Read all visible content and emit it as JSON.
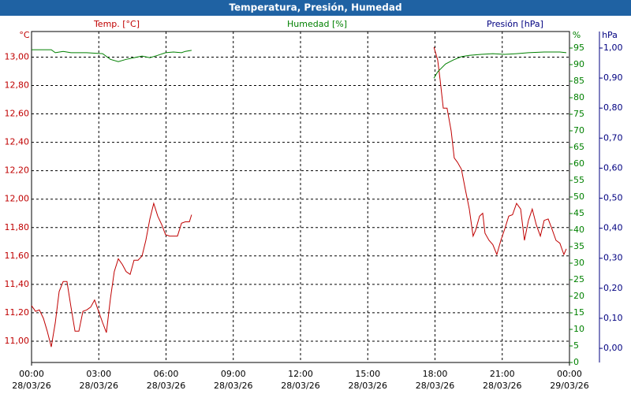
{
  "chart_data": {
    "type": "line",
    "title": "Temperatura, Presión, Humedad",
    "xlim": [
      0,
      24
    ],
    "xticks": [
      {
        "value": 0,
        "label": "00:00"
      },
      {
        "value": 3,
        "label": "03:00"
      },
      {
        "value": 6,
        "label": "06:00"
      },
      {
        "value": 9,
        "label": "09:00"
      },
      {
        "value": 12,
        "label": "12:00"
      },
      {
        "value": 15,
        "label": "15:00"
      },
      {
        "value": 18,
        "label": "18:00"
      },
      {
        "value": 21,
        "label": "21:00"
      },
      {
        "value": 24,
        "label": "00:00"
      }
    ],
    "xtick_dates": [
      "28/03/26",
      "28/03/26",
      "28/03/26",
      "28/03/26",
      "28/03/26",
      "28/03/26",
      "28/03/26",
      "28/03/26",
      "29/03/26"
    ],
    "ylabel": "°C",
    "ylim": [
      10.85,
      13.18
    ],
    "yticks": [
      {
        "value": 11.0,
        "label": "11,00"
      },
      {
        "value": 11.2,
        "label": "11,20"
      },
      {
        "value": 11.4,
        "label": "11,40"
      },
      {
        "value": 11.6,
        "label": "11,60"
      },
      {
        "value": 11.8,
        "label": "11,80"
      },
      {
        "value": 12.0,
        "label": "12,00"
      },
      {
        "value": 12.2,
        "label": "12,20"
      },
      {
        "value": 12.4,
        "label": "12,40"
      },
      {
        "value": 12.6,
        "label": "12,60"
      },
      {
        "value": 12.8,
        "label": "12,80"
      },
      {
        "value": 13.0,
        "label": "13,00"
      }
    ],
    "y2label": "%",
    "y2lim": [
      0,
      100
    ],
    "y2ticks": [
      0,
      5,
      10,
      15,
      20,
      25,
      30,
      35,
      40,
      45,
      50,
      55,
      60,
      65,
      70,
      75,
      80,
      85,
      90,
      95
    ],
    "y3name": "Presión [hPa]",
    "y3label": "hPa",
    "y3color": "#000080",
    "y3lim": [
      -0.047,
      1.055
    ],
    "y3ticks": [
      {
        "value": 0.0,
        "label": "0,00"
      },
      {
        "value": 0.1,
        "label": "0,10"
      },
      {
        "value": 0.2,
        "label": "0,20"
      },
      {
        "value": 0.3,
        "label": "0,30"
      },
      {
        "value": 0.4,
        "label": "0,40"
      },
      {
        "value": 0.5,
        "label": "0,50"
      },
      {
        "value": 0.6,
        "label": "0,60"
      },
      {
        "value": 0.7,
        "label": "0,70"
      },
      {
        "value": 0.8,
        "label": "0,80"
      },
      {
        "value": 0.9,
        "label": "0,90"
      },
      {
        "value": 1.0,
        "label": "1,00"
      }
    ],
    "grid": true,
    "series": [
      {
        "name": "Temp. [°C]",
        "color": "#c00000",
        "x": [
          0,
          0.18,
          0.35,
          0.53,
          0.7,
          0.88,
          1.06,
          1.23,
          1.41,
          1.58,
          1.76,
          1.94,
          2.11,
          2.29,
          2.46,
          2.64,
          2.81,
          2.99,
          3.17,
          3.34,
          3.52,
          3.69,
          3.87,
          4.05,
          4.22,
          4.4,
          4.57,
          4.75,
          4.93,
          5.1,
          5.28,
          5.45,
          5.63,
          5.81,
          5.98,
          6.16,
          6.33,
          6.51,
          6.69,
          6.86,
          7.04,
          7.14,
          null,
          17.95,
          18.12,
          18.23,
          18.37,
          18.54,
          18.72,
          18.86,
          19.0,
          19.18,
          19.35,
          19.53,
          19.7,
          19.81,
          19.99,
          20.13,
          20.23,
          20.41,
          20.58,
          20.76,
          20.94,
          21.11,
          21.29,
          21.46,
          21.64,
          21.82,
          21.99,
          22.17,
          22.34,
          22.52,
          22.7,
          22.87,
          23.05,
          23.22,
          23.4,
          23.57,
          23.75,
          23.86
        ],
        "values": [
          11.25,
          11.21,
          11.22,
          11.16,
          11.07,
          10.96,
          11.13,
          11.35,
          11.42,
          11.42,
          11.24,
          11.07,
          11.07,
          11.21,
          11.22,
          11.24,
          11.29,
          11.21,
          11.13,
          11.06,
          11.3,
          11.49,
          11.58,
          11.54,
          11.49,
          11.47,
          11.57,
          11.57,
          11.6,
          11.71,
          11.86,
          11.97,
          11.88,
          11.82,
          11.75,
          11.74,
          11.74,
          11.74,
          11.83,
          11.84,
          11.84,
          11.89,
          null,
          13.07,
          12.98,
          12.84,
          12.64,
          12.64,
          12.48,
          12.29,
          12.26,
          12.21,
          12.07,
          11.93,
          11.74,
          11.78,
          11.88,
          11.9,
          11.76,
          11.71,
          11.68,
          11.61,
          11.71,
          11.79,
          11.88,
          11.89,
          11.97,
          11.93,
          11.71,
          11.85,
          11.93,
          11.82,
          11.74,
          11.85,
          11.86,
          11.79,
          11.71,
          11.69,
          11.61,
          11.65
        ]
      },
      {
        "name": "Humedad [%]",
        "color": "#008000",
        "axis": "y2",
        "x": [
          0,
          0.53,
          0.88,
          1.06,
          1.41,
          1.76,
          2.46,
          3.17,
          3.52,
          3.87,
          4.22,
          4.57,
          4.93,
          5.28,
          5.63,
          5.98,
          6.33,
          6.69,
          6.86,
          7.14,
          null,
          17.95,
          18.12,
          18.47,
          18.82,
          19.18,
          19.53,
          20.06,
          20.58,
          21.11,
          21.64,
          22.17,
          22.87,
          23.57,
          23.86
        ],
        "values": [
          94.5,
          94.5,
          94.5,
          93.6,
          94.0,
          93.6,
          93.6,
          93.3,
          91.6,
          90.9,
          91.6,
          92.1,
          92.6,
          92.1,
          92.8,
          93.6,
          93.8,
          93.6,
          94.0,
          94.3,
          null,
          85.9,
          87.8,
          90.2,
          91.4,
          92.4,
          92.8,
          93.1,
          93.3,
          93.1,
          93.3,
          93.6,
          93.8,
          93.8,
          93.6
        ]
      }
    ]
  }
}
